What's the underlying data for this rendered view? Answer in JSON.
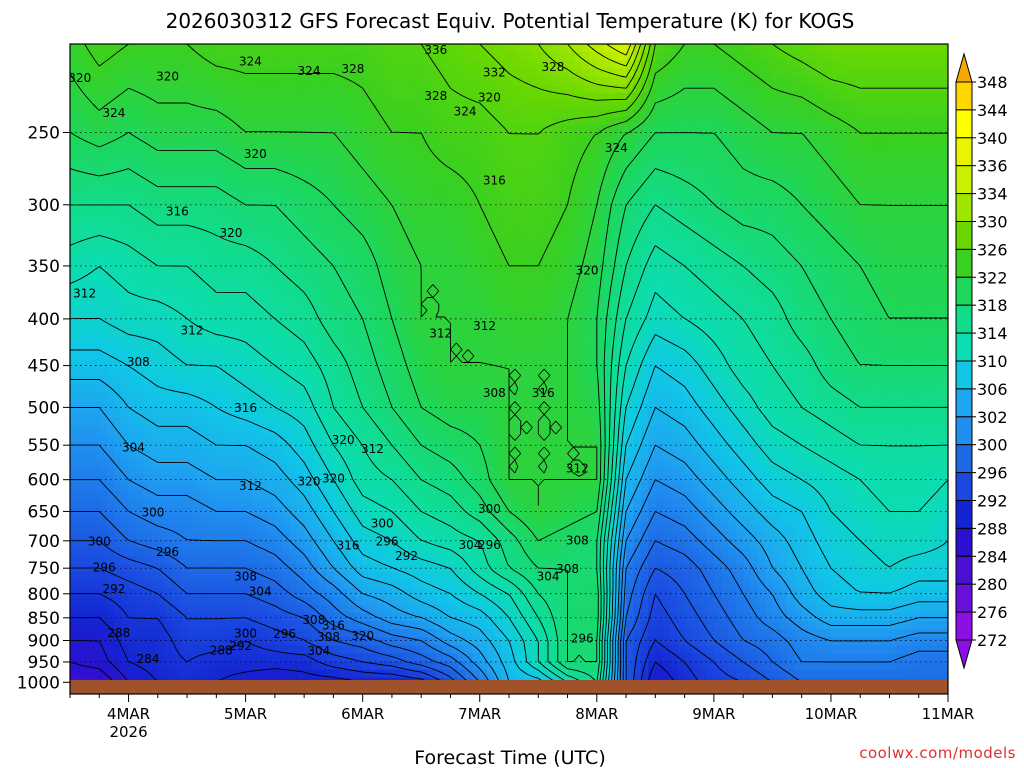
{
  "title": "2026030312 GFS Forecast Equiv. Potential Temperature (K) for KOGS",
  "xlabel": "Forecast Time (UTC)",
  "watermark": "coolwx.com/models",
  "chart_data": {
    "type": "heatmap",
    "title": "2026030312 GFS Forecast Equiv. Potential Temperature (K) for KOGS",
    "xlabel": "Forecast Time (UTC)",
    "ylabel": "",
    "x_ticks": [
      {
        "label": "4MAR",
        "sublabel": "2026",
        "hour": 12
      },
      {
        "label": "5MAR",
        "sublabel": "",
        "hour": 36
      },
      {
        "label": "6MAR",
        "sublabel": "",
        "hour": 60
      },
      {
        "label": "7MAR",
        "sublabel": "",
        "hour": 84
      },
      {
        "label": "8MAR",
        "sublabel": "",
        "hour": 108
      },
      {
        "label": "9MAR",
        "sublabel": "",
        "hour": 132
      },
      {
        "label": "10MAR",
        "sublabel": "",
        "hour": 156
      },
      {
        "label": "11MAR",
        "sublabel": "",
        "hour": 180
      }
    ],
    "xlim_hours": [
      0,
      180
    ],
    "y_scale": "log",
    "y_ticks": [
      250,
      300,
      350,
      400,
      450,
      500,
      550,
      600,
      650,
      700,
      750,
      800,
      850,
      900,
      950,
      1000
    ],
    "ylim": [
      200,
      1030
    ],
    "grid": true,
    "colorbar": {
      "labels": [
        348,
        344,
        340,
        336,
        334,
        330,
        326,
        322,
        318,
        314,
        310,
        306,
        302,
        300,
        296,
        292,
        288,
        284,
        280,
        276,
        272
      ],
      "colors": [
        "#f5a800",
        "#ffd700",
        "#ffff00",
        "#e8f500",
        "#c8f000",
        "#9ee600",
        "#6ad800",
        "#3ad020",
        "#1ed65a",
        "#12dc8a",
        "#0cdcb4",
        "#10c8e6",
        "#1ea6f0",
        "#2090f0",
        "#1e6ae6",
        "#1a48e0",
        "#1424d2",
        "#2a10d0",
        "#4a10d6",
        "#6a10dc",
        "#8c10e6"
      ],
      "placement": "right"
    },
    "x_hours": [
      0,
      6,
      12,
      18,
      24,
      30,
      36,
      42,
      48,
      54,
      60,
      66,
      72,
      78,
      84,
      90,
      96,
      102,
      108,
      114,
      120,
      126,
      132,
      138,
      144,
      150,
      156,
      162,
      168,
      174,
      180
    ],
    "levels_hpa": [
      1000,
      950,
      900,
      850,
      800,
      750,
      700,
      650,
      600,
      550,
      500,
      450,
      400,
      350,
      300,
      250,
      200
    ],
    "values": [
      [
        282,
        282,
        286,
        288,
        289,
        288,
        287,
        286,
        287,
        287,
        288,
        288,
        289,
        293,
        298,
        304,
        305,
        310,
        314,
        294,
        286,
        289,
        291,
        292,
        294,
        296,
        296,
        296,
        296,
        296,
        296
      ],
      [
        284,
        285,
        288,
        289,
        290,
        289,
        289,
        289,
        289,
        291,
        292,
        293,
        295,
        297,
        301,
        305,
        310,
        316,
        316,
        294,
        288,
        290,
        292,
        294,
        296,
        298,
        298,
        298,
        298,
        297,
        297
      ],
      [
        286,
        286,
        289,
        289,
        291,
        291,
        290,
        291,
        292,
        294,
        295,
        297,
        298,
        301,
        303,
        306,
        310,
        316,
        316,
        294,
        290,
        292,
        294,
        296,
        297,
        299,
        300,
        300,
        300,
        299,
        299
      ],
      [
        288,
        288,
        290,
        290,
        292,
        292,
        292,
        293,
        294,
        297,
        299,
        301,
        302,
        304,
        305,
        308,
        312,
        316,
        317,
        296,
        291,
        293,
        295,
        297,
        299,
        301,
        303,
        303,
        303,
        302,
        302
      ],
      [
        290,
        290,
        291,
        292,
        294,
        294,
        294,
        295,
        297,
        299,
        302,
        303,
        305,
        306,
        308,
        310,
        314,
        316,
        317,
        297,
        292,
        294,
        296,
        298,
        300,
        303,
        305,
        306,
        306,
        305,
        305
      ],
      [
        292,
        292,
        293,
        294,
        296,
        296,
        296,
        297,
        299,
        302,
        305,
        306,
        307,
        308,
        311,
        314,
        316,
        316,
        316,
        298,
        294,
        295,
        297,
        299,
        302,
        304,
        306,
        307,
        308,
        307,
        307
      ],
      [
        294,
        294,
        296,
        297,
        298,
        298,
        298,
        299,
        301,
        304,
        307,
        308,
        310,
        311,
        312,
        315,
        318,
        317,
        316,
        300,
        296,
        297,
        299,
        301,
        303,
        305,
        307,
        308,
        309,
        309,
        308
      ],
      [
        296,
        296,
        298,
        299,
        299,
        300,
        300,
        301,
        303,
        306,
        309,
        310,
        312,
        313,
        315,
        318,
        320,
        319,
        318,
        302,
        298,
        299,
        301,
        303,
        305,
        306,
        308,
        309,
        310,
        310,
        309
      ],
      [
        298,
        298,
        300,
        301,
        301,
        302,
        302,
        303,
        305,
        308,
        311,
        312,
        314,
        315,
        317,
        320,
        320,
        320,
        320,
        304,
        300,
        301,
        303,
        305,
        307,
        308,
        309,
        310,
        311,
        311,
        310
      ],
      [
        300,
        300,
        302,
        303,
        303,
        304,
        304,
        305,
        307,
        310,
        312,
        314,
        316,
        317,
        318,
        320,
        320,
        320,
        320,
        306,
        302,
        303,
        305,
        307,
        309,
        310,
        311,
        312,
        312,
        312,
        312
      ],
      [
        302,
        302,
        304,
        305,
        305,
        306,
        307,
        308,
        309,
        312,
        314,
        316,
        318,
        319,
        319,
        320,
        320,
        320,
        319,
        308,
        304,
        305,
        307,
        309,
        311,
        312,
        313,
        314,
        314,
        314,
        314
      ],
      [
        305,
        305,
        306,
        307,
        308,
        308,
        309,
        310,
        311,
        313,
        315,
        317,
        319,
        320,
        320,
        320,
        320,
        320,
        318,
        310,
        306,
        307,
        309,
        311,
        312,
        313,
        315,
        316,
        316,
        316,
        316
      ],
      [
        308,
        308,
        309,
        309,
        310,
        311,
        311,
        312,
        313,
        315,
        316,
        318,
        320,
        320,
        320,
        321,
        321,
        320,
        318,
        312,
        309,
        310,
        311,
        312,
        313,
        315,
        316,
        317,
        318,
        318,
        318
      ],
      [
        311,
        310,
        311,
        312,
        312,
        313,
        313,
        314,
        315,
        316,
        317,
        319,
        320,
        320,
        321,
        322,
        322,
        321,
        319,
        314,
        311,
        312,
        313,
        314,
        315,
        316,
        317,
        318,
        319,
        319,
        319
      ],
      [
        314,
        314,
        314,
        315,
        315,
        315,
        316,
        316,
        317,
        318,
        319,
        320,
        321,
        321,
        322,
        323,
        323,
        322,
        320,
        316,
        314,
        315,
        316,
        317,
        317,
        318,
        319,
        320,
        320,
        320,
        320
      ],
      [
        318,
        319,
        318,
        319,
        319,
        319,
        320,
        320,
        320,
        320,
        321,
        322,
        322,
        323,
        323,
        324,
        324,
        323,
        322,
        320,
        318,
        318,
        318,
        319,
        320,
        320,
        321,
        322,
        322,
        322,
        322
      ],
      [
        321,
        323,
        322,
        322,
        322,
        323,
        323,
        323,
        323,
        323,
        323,
        324,
        324,
        325,
        326,
        327,
        328,
        330,
        333,
        336,
        324,
        322,
        322,
        323,
        324,
        325,
        326,
        326,
        326,
        326,
        326
      ]
    ],
    "contour_labels": [
      {
        "text": "320",
        "hour": 2,
        "hpa": 218
      },
      {
        "text": "324",
        "hour": 9,
        "hpa": 238
      },
      {
        "text": "320",
        "hour": 20,
        "hpa": 217
      },
      {
        "text": "324",
        "hour": 37,
        "hpa": 209
      },
      {
        "text": "324",
        "hour": 49,
        "hpa": 214
      },
      {
        "text": "328",
        "hour": 58,
        "hpa": 213
      },
      {
        "text": "336",
        "hour": 75,
        "hpa": 203
      },
      {
        "text": "332",
        "hour": 87,
        "hpa": 215
      },
      {
        "text": "328",
        "hour": 99,
        "hpa": 212
      },
      {
        "text": "328",
        "hour": 75,
        "hpa": 228
      },
      {
        "text": "320",
        "hour": 86,
        "hpa": 229
      },
      {
        "text": "324",
        "hour": 81,
        "hpa": 237
      },
      {
        "text": "320",
        "hour": 38,
        "hpa": 264
      },
      {
        "text": "316",
        "hour": 87,
        "hpa": 282
      },
      {
        "text": "324",
        "hour": 112,
        "hpa": 260
      },
      {
        "text": "316",
        "hour": 22,
        "hpa": 305
      },
      {
        "text": "320",
        "hour": 33,
        "hpa": 322
      },
      {
        "text": "312",
        "hour": 3,
        "hpa": 375
      },
      {
        "text": "320",
        "hour": 106,
        "hpa": 354
      },
      {
        "text": "312",
        "hour": 25,
        "hpa": 412
      },
      {
        "text": "312",
        "hour": 76,
        "hpa": 415
      },
      {
        "text": "312",
        "hour": 85,
        "hpa": 407
      },
      {
        "text": "308",
        "hour": 14,
        "hpa": 446
      },
      {
        "text": "316",
        "hour": 36,
        "hpa": 501
      },
      {
        "text": "308",
        "hour": 87,
        "hpa": 482
      },
      {
        "text": "316",
        "hour": 97,
        "hpa": 482
      },
      {
        "text": "304",
        "hour": 13,
        "hpa": 553
      },
      {
        "text": "320",
        "hour": 56,
        "hpa": 543
      },
      {
        "text": "312",
        "hour": 62,
        "hpa": 555
      },
      {
        "text": "312",
        "hour": 37,
        "hpa": 610
      },
      {
        "text": "320",
        "hour": 49,
        "hpa": 603
      },
      {
        "text": "320",
        "hour": 54,
        "hpa": 598
      },
      {
        "text": "312",
        "hour": 104,
        "hpa": 583
      },
      {
        "text": "300",
        "hour": 17,
        "hpa": 652
      },
      {
        "text": "300",
        "hour": 64,
        "hpa": 670
      },
      {
        "text": "300",
        "hour": 86,
        "hpa": 646
      },
      {
        "text": "296",
        "hour": 65,
        "hpa": 701
      },
      {
        "text": "316",
        "hour": 57,
        "hpa": 708
      },
      {
        "text": "292",
        "hour": 69,
        "hpa": 727
      },
      {
        "text": "304",
        "hour": 82,
        "hpa": 707
      },
      {
        "text": "296",
        "hour": 86,
        "hpa": 707
      },
      {
        "text": "308",
        "hour": 104,
        "hpa": 699
      },
      {
        "text": "300",
        "hour": 6,
        "hpa": 701
      },
      {
        "text": "296",
        "hour": 20,
        "hpa": 720
      },
      {
        "text": "296",
        "hour": 7,
        "hpa": 749
      },
      {
        "text": "292",
        "hour": 9,
        "hpa": 790
      },
      {
        "text": "308",
        "hour": 36,
        "hpa": 766
      },
      {
        "text": "304",
        "hour": 39,
        "hpa": 795
      },
      {
        "text": "304",
        "hour": 98,
        "hpa": 766
      },
      {
        "text": "308",
        "hour": 102,
        "hpa": 752
      },
      {
        "text": "288",
        "hour": 10,
        "hpa": 883
      },
      {
        "text": "284",
        "hour": 16,
        "hpa": 943
      },
      {
        "text": "300",
        "hour": 36,
        "hpa": 884
      },
      {
        "text": "296",
        "hour": 44,
        "hpa": 885
      },
      {
        "text": "288",
        "hour": 31,
        "hpa": 923
      },
      {
        "text": "292",
        "hour": 35,
        "hpa": 913
      },
      {
        "text": "308",
        "hour": 50,
        "hpa": 855
      },
      {
        "text": "316",
        "hour": 54,
        "hpa": 867
      },
      {
        "text": "308",
        "hour": 53,
        "hpa": 892
      },
      {
        "text": "320",
        "hour": 60,
        "hpa": 890
      },
      {
        "text": "304",
        "hour": 51,
        "hpa": 924
      },
      {
        "text": "296",
        "hour": 105,
        "hpa": 895
      }
    ]
  }
}
